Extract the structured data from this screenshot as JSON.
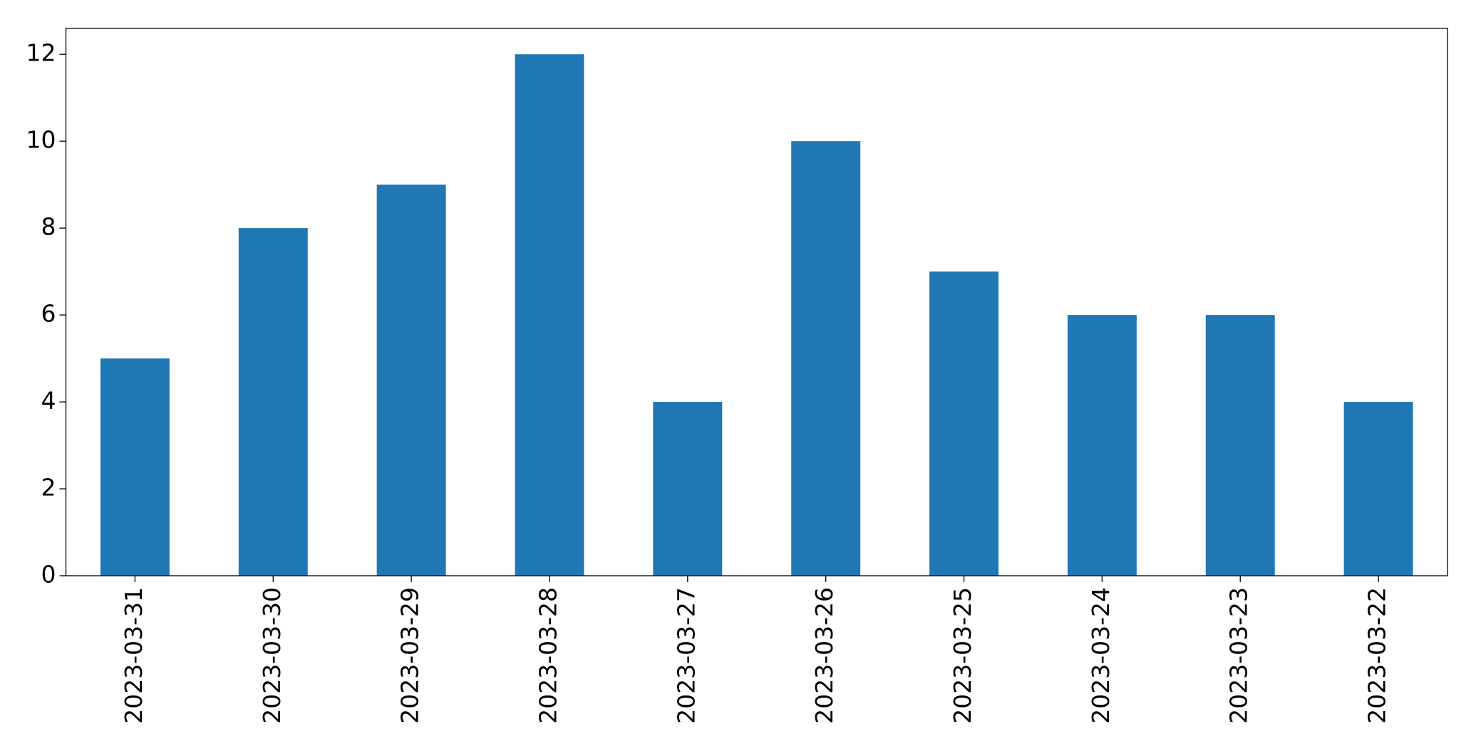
{
  "chart_data": {
    "type": "bar",
    "categories": [
      "2023-03-31",
      "2023-03-30",
      "2023-03-29",
      "2023-03-28",
      "2023-03-27",
      "2023-03-26",
      "2023-03-25",
      "2023-03-24",
      "2023-03-23",
      "2023-03-22"
    ],
    "values": [
      5,
      8,
      9,
      12,
      4,
      10,
      7,
      6,
      6,
      4
    ],
    "color": "#1f77b4",
    "ylim": [
      0,
      12.6
    ],
    "yticks": [
      0,
      2,
      4,
      6,
      8,
      10,
      12
    ],
    "grid": false
  }
}
